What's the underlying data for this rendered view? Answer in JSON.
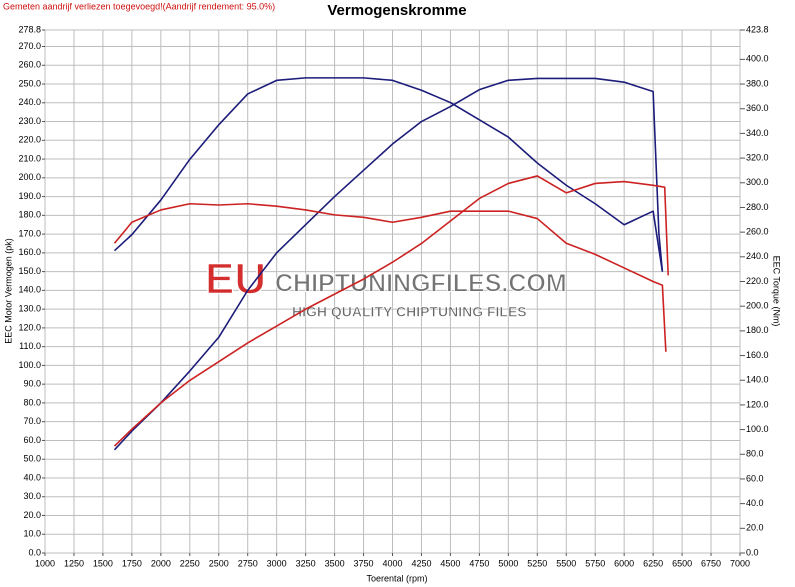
{
  "note": "Gemeten aandrijf verliezen toegevoegd!(Aandrijf rendement: 95.0%)",
  "watermark": {
    "brand": "EU",
    "site": "CHIPTUNINGFILES.COM",
    "tagline": "HIGH QUALITY CHIPTUNING FILES"
  },
  "chart_data": {
    "type": "line",
    "title": "Vermogenskromme",
    "x_label": "Toerental (rpm)",
    "y_label": "EEC Motor Vermogen (pk)",
    "y2_label": "EEC Torque (Nm)",
    "xlim": [
      1000,
      7000
    ],
    "xticks": [
      1000,
      1250,
      1500,
      1750,
      2000,
      2250,
      2500,
      2750,
      3000,
      3250,
      3500,
      3750,
      4000,
      4250,
      4500,
      4750,
      5000,
      5250,
      5500,
      5750,
      6000,
      6250,
      6500,
      6750,
      7000
    ],
    "ylim": [
      0,
      278.8
    ],
    "yticks": [
      {
        "value": 0,
        "label": "0.0"
      },
      {
        "value": 10,
        "label": "10.0"
      },
      {
        "value": 20,
        "label": "20.0"
      },
      {
        "value": 30,
        "label": "30.0"
      },
      {
        "value": 40,
        "label": "40.0"
      },
      {
        "value": 50,
        "label": "50.0"
      },
      {
        "value": 60,
        "label": "60.0"
      },
      {
        "value": 70,
        "label": "70.0"
      },
      {
        "value": 80,
        "label": "80.0"
      },
      {
        "value": 90,
        "label": "90.0"
      },
      {
        "value": 100,
        "label": "100.0"
      },
      {
        "value": 110,
        "label": "110.0"
      },
      {
        "value": 120,
        "label": "120.0"
      },
      {
        "value": 130,
        "label": "130.0"
      },
      {
        "value": 140,
        "label": "140.0"
      },
      {
        "value": 150,
        "label": "150.0"
      },
      {
        "value": 160,
        "label": "160.0"
      },
      {
        "value": 170,
        "label": "170.0"
      },
      {
        "value": 180,
        "label": "180.0"
      },
      {
        "value": 190,
        "label": "190.0"
      },
      {
        "value": 200,
        "label": "200.0"
      },
      {
        "value": 210,
        "label": "210.0"
      },
      {
        "value": 220,
        "label": "220.0"
      },
      {
        "value": 230,
        "label": "230.0"
      },
      {
        "value": 240,
        "label": "240.0"
      },
      {
        "value": 250,
        "label": "250.0"
      },
      {
        "value": 260,
        "label": "260.0"
      },
      {
        "value": 270,
        "label": "270.0"
      },
      {
        "value": 278.8,
        "label": "278.8"
      }
    ],
    "y2lim": [
      0,
      423.8
    ],
    "y2ticks": [
      {
        "value": 0,
        "label": "0.0"
      },
      {
        "value": 20,
        "label": "20.0"
      },
      {
        "value": 40,
        "label": "40.0"
      },
      {
        "value": 60,
        "label": "60.0"
      },
      {
        "value": 80,
        "label": "80.0"
      },
      {
        "value": 100,
        "label": "100.0"
      },
      {
        "value": 120,
        "label": "120.0"
      },
      {
        "value": 140,
        "label": "140.0"
      },
      {
        "value": 160,
        "label": "160.0"
      },
      {
        "value": 180,
        "label": "180.0"
      },
      {
        "value": 200,
        "label": "200.0"
      },
      {
        "value": 220,
        "label": "220.0"
      },
      {
        "value": 240,
        "label": "240.0"
      },
      {
        "value": 260,
        "label": "260.0"
      },
      {
        "value": 280,
        "label": "280.0"
      },
      {
        "value": 300,
        "label": "300.0"
      },
      {
        "value": 320,
        "label": "320.0"
      },
      {
        "value": 340,
        "label": "340.0"
      },
      {
        "value": 360,
        "label": "360.0"
      },
      {
        "value": 380,
        "label": "380.0"
      },
      {
        "value": 400,
        "label": "400.0"
      },
      {
        "value": 423.8,
        "label": "423.8"
      }
    ],
    "grid": true,
    "series": [
      {
        "color": "#1c1c7a",
        "axis": "y",
        "x": [
          1600,
          1750,
          2000,
          2250,
          2500,
          2750,
          3000,
          3250,
          3500,
          3750,
          4000,
          4250,
          4500,
          4750,
          5000,
          5250,
          5500,
          5750,
          6000,
          6250,
          6300,
          6330
        ],
        "values": [
          55,
          65,
          80,
          97,
          115,
          140,
          160,
          175,
          190,
          204,
          218,
          230,
          238,
          247,
          252,
          253,
          253,
          253,
          251,
          246,
          170,
          150
        ]
      },
      {
        "color": "#1c1c7a",
        "axis": "y2",
        "x": [
          1600,
          1750,
          2000,
          2250,
          2500,
          2750,
          3000,
          3250,
          3500,
          3750,
          4000,
          4250,
          4500,
          4750,
          5000,
          5250,
          5500,
          5750,
          6000,
          6250,
          6330
        ],
        "values": [
          245,
          258,
          286,
          319,
          347,
          372,
          383,
          385,
          385,
          385,
          383,
          375,
          365,
          351,
          337,
          316,
          298,
          283,
          266,
          277,
          228
        ]
      },
      {
        "color": "#cc2222",
        "axis": "y",
        "x": [
          1600,
          1750,
          2000,
          2250,
          2500,
          2750,
          3000,
          3250,
          3500,
          3750,
          4000,
          4250,
          4500,
          4750,
          5000,
          5250,
          5500,
          5750,
          6000,
          6250,
          6350,
          6380
        ],
        "values": [
          57,
          66,
          80,
          92,
          102,
          112,
          121,
          130,
          138,
          146,
          155,
          165,
          177,
          189,
          197,
          201,
          192,
          197,
          198,
          196,
          195,
          148
        ]
      },
      {
        "color": "#cc2222",
        "axis": "y2",
        "x": [
          1600,
          1750,
          2000,
          2250,
          2500,
          2750,
          3000,
          3250,
          3500,
          3750,
          4000,
          4250,
          4500,
          4750,
          5000,
          5250,
          5500,
          5750,
          6000,
          6250,
          6330,
          6360
        ],
        "values": [
          251,
          268,
          278,
          283,
          282,
          283,
          281,
          278,
          274,
          272,
          268,
          272,
          277,
          277,
          277,
          271,
          251,
          242,
          231,
          220,
          217,
          163
        ]
      }
    ]
  }
}
